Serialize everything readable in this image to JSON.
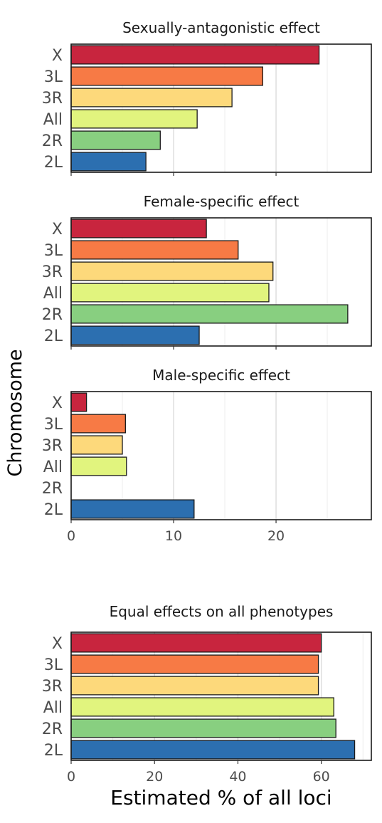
{
  "colors": {
    "X": "#c8253e",
    "3L": "#f77a45",
    "3R": "#fdd97b",
    "All": "#e1f47e",
    "2R": "#88cf80",
    "2L": "#2c6fb0"
  },
  "ylabel": "Chromosome",
  "xlabel": "Estimated % of all loci",
  "chart_data": [
    {
      "type": "bar",
      "orientation": "horizontal",
      "title": "Sexually-antagonistic effect",
      "categories": [
        "X",
        "3L",
        "3R",
        "All",
        "2R",
        "2L"
      ],
      "values": [
        24.2,
        18.7,
        15.7,
        12.3,
        8.7,
        7.3
      ],
      "xlim": [
        0,
        29.3
      ],
      "x_ticks": [
        0,
        10,
        20
      ],
      "grid": true,
      "shared_x_axis_with": [
        "Female-specific effect",
        "Male-specific effect"
      ]
    },
    {
      "type": "bar",
      "orientation": "horizontal",
      "title": "Female-specific effect",
      "categories": [
        "X",
        "3L",
        "3R",
        "All",
        "2R",
        "2L"
      ],
      "values": [
        13.2,
        16.3,
        19.7,
        19.3,
        27.0,
        12.5
      ],
      "xlim": [
        0,
        29.3
      ],
      "x_ticks": [
        0,
        10,
        20
      ],
      "grid": true
    },
    {
      "type": "bar",
      "orientation": "horizontal",
      "title": "Male-specific effect",
      "categories": [
        "X",
        "3L",
        "3R",
        "All",
        "2R",
        "2L"
      ],
      "values": [
        1.5,
        5.3,
        5.0,
        5.4,
        0.0,
        12.0
      ],
      "xlim": [
        0,
        29.3
      ],
      "x_ticks": [
        0,
        10,
        20
      ],
      "tick_labels": [
        "0",
        "10",
        "20"
      ],
      "grid": true
    },
    {
      "type": "bar",
      "orientation": "horizontal",
      "title": "Equal effects on all phenotypes",
      "categories": [
        "X",
        "3L",
        "3R",
        "All",
        "2R",
        "2L"
      ],
      "values": [
        60.0,
        59.3,
        59.3,
        63.0,
        63.5,
        68.0
      ],
      "xlim": [
        0,
        72
      ],
      "x_ticks": [
        0,
        20,
        40,
        60
      ],
      "tick_labels": [
        "0",
        "20",
        "40",
        "60"
      ],
      "grid": true
    }
  ]
}
